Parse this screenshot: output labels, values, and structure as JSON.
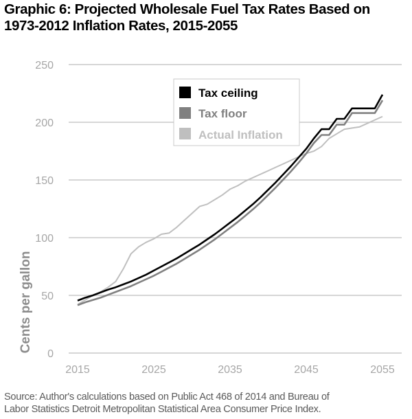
{
  "title_lines": [
    "Graphic 6: Projected Wholesale Fuel Tax Rates Based on",
    "1973-2012 Inflation Rates, 2015-2055"
  ],
  "source_lines": [
    "Source: Author's calculations based on Public Act 468 of 2014 and Bureau of",
    "Labor Statistics Detroit Metropolitan Statistical Area Consumer Price Index."
  ],
  "chart_data": {
    "type": "line",
    "title": "Graphic 6: Projected Wholesale Fuel Tax Rates Based on 1973-2012 Inflation Rates, 2015-2055",
    "xlabel": "",
    "ylabel": "Cents per gallon",
    "xlim": [
      2015,
      2055
    ],
    "ylim": [
      0,
      250
    ],
    "x_ticks": [
      "2015",
      "2025",
      "2035",
      "2045",
      "2055"
    ],
    "x_tick_values": [
      2015,
      2025,
      2035,
      2045,
      2055
    ],
    "y_ticks": [
      "0",
      "50",
      "100",
      "150",
      "200",
      "250"
    ],
    "y_tick_values": [
      0,
      50,
      100,
      150,
      200,
      250
    ],
    "grid": "horizontal",
    "legend_position": "top-center",
    "x": [
      2015,
      2016,
      2017,
      2018,
      2019,
      2020,
      2021,
      2022,
      2023,
      2024,
      2025,
      2026,
      2027,
      2028,
      2029,
      2030,
      2031,
      2032,
      2033,
      2034,
      2035,
      2036,
      2037,
      2038,
      2039,
      2040,
      2041,
      2042,
      2043,
      2044,
      2045,
      2046,
      2047,
      2048,
      2049,
      2050,
      2051,
      2052,
      2053,
      2054,
      2055
    ],
    "series": [
      {
        "name": "Tax ceiling",
        "color": "#000000",
        "values": [
          45.5,
          48,
          50,
          52.5,
          55,
          57,
          59.5,
          62,
          65,
          68,
          71.5,
          75,
          78.5,
          82,
          86,
          90,
          94,
          98.5,
          103,
          108,
          113,
          118,
          123.5,
          129,
          135,
          141.5,
          148,
          155,
          162,
          169.5,
          177,
          186,
          194,
          194,
          203,
          203,
          212,
          212,
          212,
          212,
          224
        ]
      },
      {
        "name": "Tax floor",
        "color": "#808080",
        "values": [
          41.5,
          44,
          46,
          48,
          50.5,
          53,
          55.5,
          58,
          61,
          64,
          67,
          70.5,
          74,
          77.5,
          81.5,
          85.5,
          89.5,
          94,
          98.5,
          103.5,
          108.5,
          113.5,
          119,
          124.5,
          130.5,
          137,
          143.5,
          150.5,
          157.5,
          165,
          173,
          182,
          189,
          189,
          198,
          198,
          208,
          208,
          208,
          208,
          219
        ]
      },
      {
        "name": "Actual Inflation",
        "color": "#bfbfbf",
        "values": [
          42,
          46,
          50,
          53,
          57,
          62,
          73,
          86,
          92,
          96,
          99,
          103,
          104,
          109,
          115,
          121,
          127,
          129,
          133,
          137,
          142,
          145,
          149,
          152,
          155,
          158,
          161,
          164,
          167,
          170,
          173,
          175,
          179,
          186,
          190,
          194,
          195,
          196,
          199,
          202,
          205
        ]
      }
    ]
  }
}
